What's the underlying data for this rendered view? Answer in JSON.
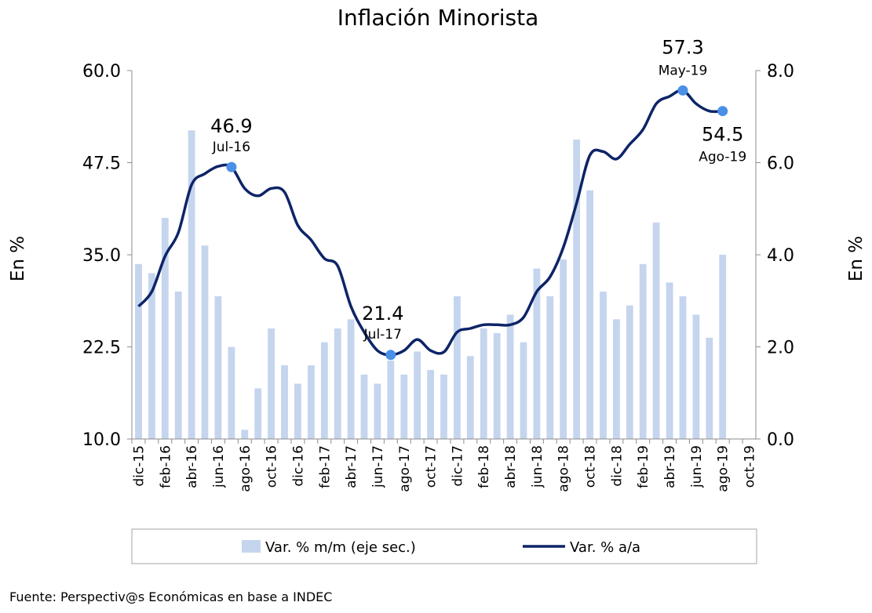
{
  "chart_data": {
    "type": "bar+line",
    "title": "Inflación Minorista",
    "ylabel_left": "En %",
    "ylabel_right": "En %",
    "y_left": {
      "min": 10,
      "max": 60,
      "ticks": [
        "10.0",
        "22.5",
        "35.0",
        "47.5",
        "60.0"
      ]
    },
    "y_right": {
      "min": 0,
      "max": 8,
      "ticks": [
        "0.0",
        "2.0",
        "4.0",
        "6.0",
        "8.0"
      ]
    },
    "months": [
      "dic-15",
      "ene-16",
      "feb-16",
      "mar-16",
      "abr-16",
      "may-16",
      "jun-16",
      "jul-16",
      "ago-16",
      "sep-16",
      "oct-16",
      "nov-16",
      "dic-16",
      "ene-17",
      "feb-17",
      "mar-17",
      "abr-17",
      "may-17",
      "jun-17",
      "jul-17",
      "ago-17",
      "sep-17",
      "oct-17",
      "nov-17",
      "dic-17",
      "ene-18",
      "feb-18",
      "mar-18",
      "abr-18",
      "may-18",
      "jun-18",
      "jul-18",
      "ago-18",
      "sep-18",
      "oct-18",
      "nov-18",
      "dic-18",
      "ene-19",
      "feb-19",
      "mar-19",
      "abr-19",
      "may-19",
      "jun-19",
      "jul-19",
      "ago-19",
      "sep-19",
      "oct-19"
    ],
    "x_tick_labels": [
      "dic-15",
      "feb-16",
      "abr-16",
      "jun-16",
      "ago-16",
      "oct-16",
      "dic-16",
      "feb-17",
      "abr-17",
      "jun-17",
      "ago-17",
      "oct-17",
      "dic-17",
      "feb-18",
      "abr-18",
      "jun-18",
      "ago-18",
      "oct-18",
      "dic-18",
      "feb-19",
      "abr-19",
      "jun-19",
      "ago-19",
      "oct-19"
    ],
    "series": [
      {
        "name": "Var. % m/m (eje sec.)",
        "type": "bar",
        "axis": "right",
        "color": "#c5d5ee",
        "values": [
          3.8,
          3.6,
          4.8,
          3.2,
          6.7,
          4.2,
          3.1,
          2.0,
          0.2,
          1.1,
          2.4,
          1.6,
          1.2,
          1.6,
          2.1,
          2.4,
          2.6,
          1.4,
          1.2,
          1.7,
          1.4,
          1.9,
          1.5,
          1.4,
          3.1,
          1.8,
          2.4,
          2.3,
          2.7,
          2.1,
          3.7,
          3.1,
          3.9,
          6.5,
          5.4,
          3.2,
          2.6,
          2.9,
          3.8,
          4.7,
          3.4,
          3.1,
          2.7,
          2.2,
          4.0
        ]
      },
      {
        "name": "Var. % a/a",
        "type": "line",
        "axis": "left",
        "color": "#0d2467",
        "values": [
          28.0,
          30.0,
          34.8,
          38.0,
          44.5,
          46.0,
          47.0,
          46.9,
          44.0,
          43.0,
          44.0,
          43.5,
          39.0,
          37.0,
          34.5,
          33.5,
          28.0,
          24.5,
          22.0,
          21.4,
          22.0,
          23.5,
          22.0,
          21.8,
          24.5,
          25.0,
          25.5,
          25.5,
          25.5,
          26.5,
          30.0,
          32.0,
          36.0,
          42.0,
          48.5,
          49.0,
          48.0,
          50.0,
          52.0,
          55.5,
          56.5,
          57.3,
          55.5,
          54.5,
          54.5
        ]
      }
    ],
    "annotations": [
      {
        "value": "46.9",
        "date": "Jul-16",
        "month": "jul-16",
        "y": 46.9,
        "color": "#4a8fe8"
      },
      {
        "value": "21.4",
        "date": "Jul-17",
        "month": "jul-17",
        "y": 21.4,
        "color": "#4a8fe8"
      },
      {
        "value": "57.3",
        "date": "May-19",
        "month": "may-19",
        "y": 57.3,
        "color": "#4a8fe8"
      },
      {
        "value": "54.5",
        "date": "Ago-19",
        "month": "ago-19",
        "y": 54.5,
        "color": "#4a8fe8"
      }
    ],
    "legend": [
      {
        "label": "Var. % m/m (eje sec.)",
        "kind": "bar",
        "color": "#c5d5ee"
      },
      {
        "label": "Var. % a/a",
        "kind": "line",
        "color": "#0d2467"
      }
    ],
    "legend_position": "bottom",
    "grid": false
  },
  "source": "Fuente: Perspectiv@s Económicas en base a INDEC"
}
